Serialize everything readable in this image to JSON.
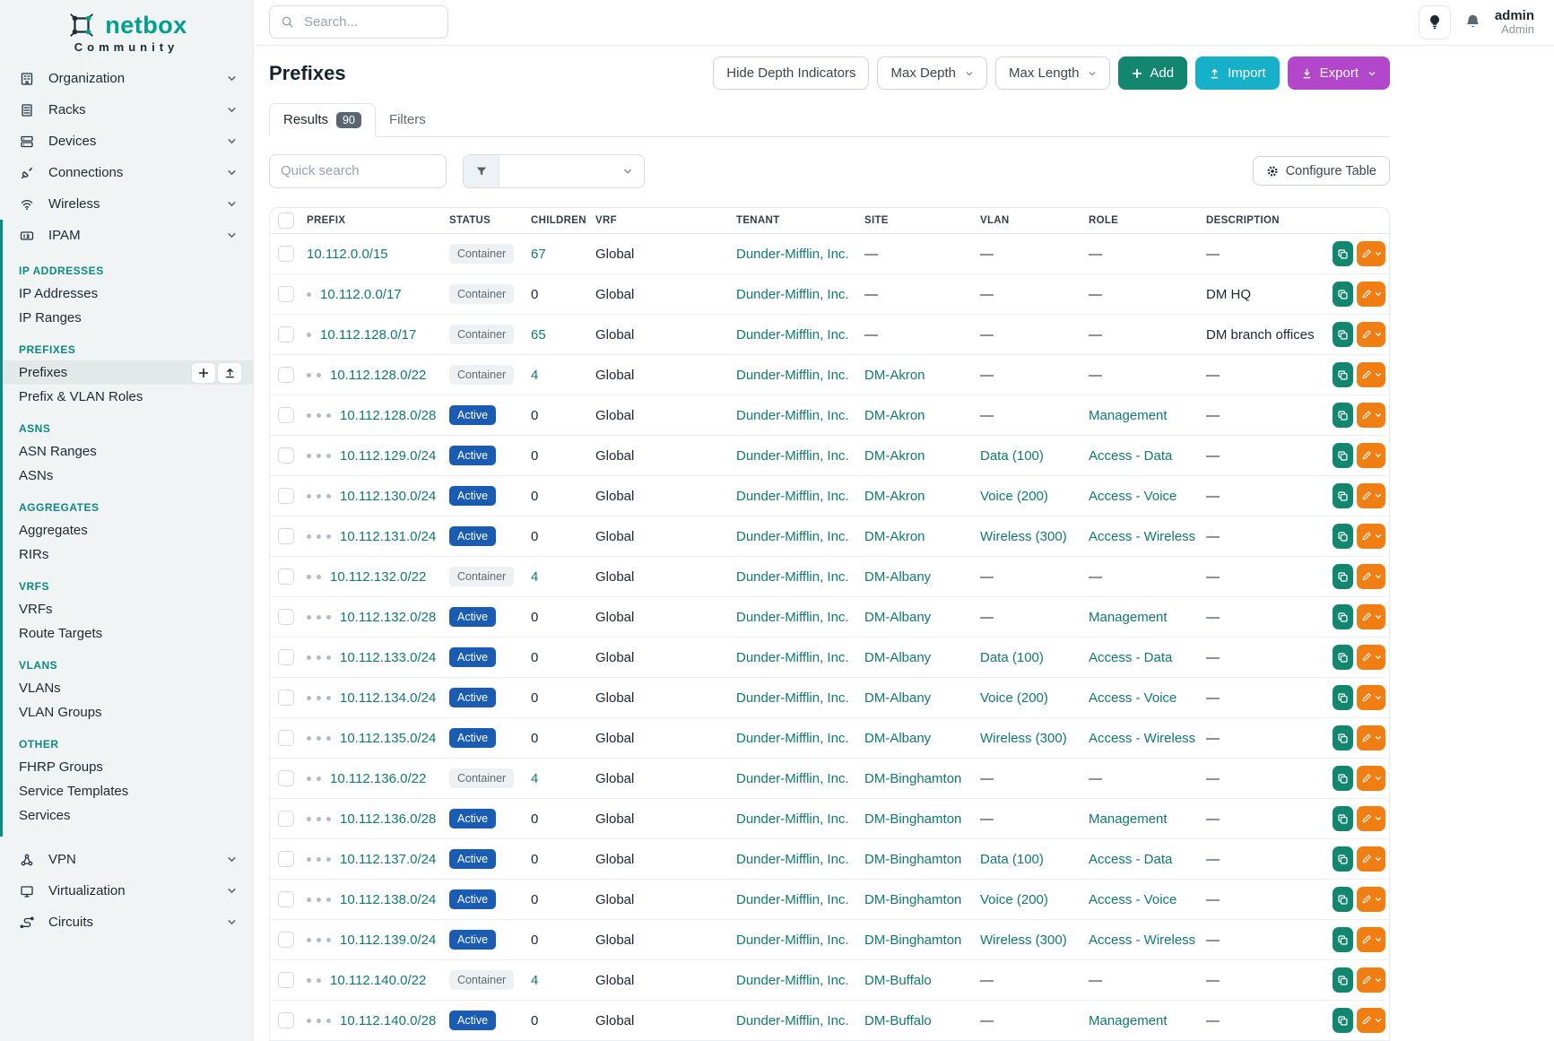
{
  "brand": {
    "name": "netbox",
    "subtitle": "Community"
  },
  "topbar": {
    "search_placeholder": "Search...",
    "icons": [
      "lightbulb-icon",
      "bell-icon"
    ],
    "user": {
      "name": "admin",
      "role": "Admin"
    }
  },
  "sidebar": {
    "top_items": [
      {
        "label": "Organization",
        "icon": "building-icon"
      },
      {
        "label": "Racks",
        "icon": "rack-icon"
      },
      {
        "label": "Devices",
        "icon": "server-icon"
      },
      {
        "label": "Connections",
        "icon": "plug-icon"
      },
      {
        "label": "Wireless",
        "icon": "wifi-icon"
      },
      {
        "label": "IPAM",
        "icon": "counter-icon",
        "expanded": true
      }
    ],
    "sections": [
      {
        "title": "IP ADDRESSES",
        "items": [
          {
            "label": "IP Addresses"
          },
          {
            "label": "IP Ranges"
          }
        ]
      },
      {
        "title": "PREFIXES",
        "items": [
          {
            "label": "Prefixes",
            "active": true,
            "actions": [
              "plus-icon",
              "upload-icon"
            ]
          },
          {
            "label": "Prefix & VLAN Roles"
          }
        ]
      },
      {
        "title": "ASNS",
        "items": [
          {
            "label": "ASN Ranges"
          },
          {
            "label": "ASNs"
          }
        ]
      },
      {
        "title": "AGGREGATES",
        "items": [
          {
            "label": "Aggregates"
          },
          {
            "label": "RIRs"
          }
        ]
      },
      {
        "title": "VRFS",
        "items": [
          {
            "label": "VRFs"
          },
          {
            "label": "Route Targets"
          }
        ]
      },
      {
        "title": "VLANS",
        "items": [
          {
            "label": "VLANs"
          },
          {
            "label": "VLAN Groups"
          }
        ]
      },
      {
        "title": "OTHER",
        "items": [
          {
            "label": "FHRP Groups"
          },
          {
            "label": "Service Templates"
          },
          {
            "label": "Services"
          }
        ]
      }
    ],
    "bottom_items": [
      {
        "label": "VPN",
        "icon": "network-icon"
      },
      {
        "label": "Virtualization",
        "icon": "monitor-icon"
      },
      {
        "label": "Circuits",
        "icon": "circuit-icon"
      }
    ]
  },
  "page": {
    "title": "Prefixes",
    "toolbar": {
      "hide_depth": "Hide Depth Indicators",
      "max_depth": "Max Depth",
      "max_length": "Max Length",
      "add": "Add",
      "import": "Import",
      "export": "Export"
    },
    "tabs": {
      "results": "Results",
      "results_count": "90",
      "filters": "Filters"
    },
    "quick_search_placeholder": "Quick search",
    "configure_table": "Configure Table"
  },
  "table": {
    "columns": [
      "PREFIX",
      "STATUS",
      "CHILDREN",
      "VRF",
      "TENANT",
      "SITE",
      "VLAN",
      "ROLE",
      "DESCRIPTION"
    ],
    "rows": [
      {
        "depth": 0,
        "prefix": "10.112.0.0/15",
        "status": "Container",
        "children": "67",
        "vrf": "Global",
        "tenant": "Dunder-Mifflin, Inc.",
        "site": "—",
        "vlan": "—",
        "role": "—",
        "description": "—"
      },
      {
        "depth": 1,
        "prefix": "10.112.0.0/17",
        "status": "Container",
        "children": "0",
        "vrf": "Global",
        "tenant": "Dunder-Mifflin, Inc.",
        "site": "—",
        "vlan": "—",
        "role": "—",
        "description": "DM HQ"
      },
      {
        "depth": 1,
        "prefix": "10.112.128.0/17",
        "status": "Container",
        "children": "65",
        "vrf": "Global",
        "tenant": "Dunder-Mifflin, Inc.",
        "site": "—",
        "vlan": "—",
        "role": "—",
        "description": "DM branch offices"
      },
      {
        "depth": 2,
        "prefix": "10.112.128.0/22",
        "status": "Container",
        "children": "4",
        "vrf": "Global",
        "tenant": "Dunder-Mifflin, Inc.",
        "site": "DM-Akron",
        "vlan": "—",
        "role": "—",
        "description": "—"
      },
      {
        "depth": 3,
        "prefix": "10.112.128.0/28",
        "status": "Active",
        "children": "0",
        "vrf": "Global",
        "tenant": "Dunder-Mifflin, Inc.",
        "site": "DM-Akron",
        "vlan": "—",
        "role": "Management",
        "description": "—"
      },
      {
        "depth": 3,
        "prefix": "10.112.129.0/24",
        "status": "Active",
        "children": "0",
        "vrf": "Global",
        "tenant": "Dunder-Mifflin, Inc.",
        "site": "DM-Akron",
        "vlan": "Data (100)",
        "role": "Access - Data",
        "description": "—"
      },
      {
        "depth": 3,
        "prefix": "10.112.130.0/24",
        "status": "Active",
        "children": "0",
        "vrf": "Global",
        "tenant": "Dunder-Mifflin, Inc.",
        "site": "DM-Akron",
        "vlan": "Voice (200)",
        "role": "Access - Voice",
        "description": "—"
      },
      {
        "depth": 3,
        "prefix": "10.112.131.0/24",
        "status": "Active",
        "children": "0",
        "vrf": "Global",
        "tenant": "Dunder-Mifflin, Inc.",
        "site": "DM-Akron",
        "vlan": "Wireless (300)",
        "role": "Access - Wireless",
        "description": "—"
      },
      {
        "depth": 2,
        "prefix": "10.112.132.0/22",
        "status": "Container",
        "children": "4",
        "vrf": "Global",
        "tenant": "Dunder-Mifflin, Inc.",
        "site": "DM-Albany",
        "vlan": "—",
        "role": "—",
        "description": "—"
      },
      {
        "depth": 3,
        "prefix": "10.112.132.0/28",
        "status": "Active",
        "children": "0",
        "vrf": "Global",
        "tenant": "Dunder-Mifflin, Inc.",
        "site": "DM-Albany",
        "vlan": "—",
        "role": "Management",
        "description": "—"
      },
      {
        "depth": 3,
        "prefix": "10.112.133.0/24",
        "status": "Active",
        "children": "0",
        "vrf": "Global",
        "tenant": "Dunder-Mifflin, Inc.",
        "site": "DM-Albany",
        "vlan": "Data (100)",
        "role": "Access - Data",
        "description": "—"
      },
      {
        "depth": 3,
        "prefix": "10.112.134.0/24",
        "status": "Active",
        "children": "0",
        "vrf": "Global",
        "tenant": "Dunder-Mifflin, Inc.",
        "site": "DM-Albany",
        "vlan": "Voice (200)",
        "role": "Access - Voice",
        "description": "—"
      },
      {
        "depth": 3,
        "prefix": "10.112.135.0/24",
        "status": "Active",
        "children": "0",
        "vrf": "Global",
        "tenant": "Dunder-Mifflin, Inc.",
        "site": "DM-Albany",
        "vlan": "Wireless (300)",
        "role": "Access - Wireless",
        "description": "—"
      },
      {
        "depth": 2,
        "prefix": "10.112.136.0/22",
        "status": "Container",
        "children": "4",
        "vrf": "Global",
        "tenant": "Dunder-Mifflin, Inc.",
        "site": "DM-Binghamton",
        "vlan": "—",
        "role": "—",
        "description": "—"
      },
      {
        "depth": 3,
        "prefix": "10.112.136.0/28",
        "status": "Active",
        "children": "0",
        "vrf": "Global",
        "tenant": "Dunder-Mifflin, Inc.",
        "site": "DM-Binghamton",
        "vlan": "—",
        "role": "Management",
        "description": "—"
      },
      {
        "depth": 3,
        "prefix": "10.112.137.0/24",
        "status": "Active",
        "children": "0",
        "vrf": "Global",
        "tenant": "Dunder-Mifflin, Inc.",
        "site": "DM-Binghamton",
        "vlan": "Data (100)",
        "role": "Access - Data",
        "description": "—"
      },
      {
        "depth": 3,
        "prefix": "10.112.138.0/24",
        "status": "Active",
        "children": "0",
        "vrf": "Global",
        "tenant": "Dunder-Mifflin, Inc.",
        "site": "DM-Binghamton",
        "vlan": "Voice (200)",
        "role": "Access - Voice",
        "description": "—"
      },
      {
        "depth": 3,
        "prefix": "10.112.139.0/24",
        "status": "Active",
        "children": "0",
        "vrf": "Global",
        "tenant": "Dunder-Mifflin, Inc.",
        "site": "DM-Binghamton",
        "vlan": "Wireless (300)",
        "role": "Access - Wireless",
        "description": "—"
      },
      {
        "depth": 2,
        "prefix": "10.112.140.0/22",
        "status": "Container",
        "children": "4",
        "vrf": "Global",
        "tenant": "Dunder-Mifflin, Inc.",
        "site": "DM-Buffalo",
        "vlan": "—",
        "role": "—",
        "description": "—"
      },
      {
        "depth": 3,
        "prefix": "10.112.140.0/28",
        "status": "Active",
        "children": "0",
        "vrf": "Global",
        "tenant": "Dunder-Mifflin, Inc.",
        "site": "DM-Buffalo",
        "vlan": "—",
        "role": "Management",
        "description": "—"
      }
    ]
  },
  "colors": {
    "brand-teal": "#00a18c",
    "link-teal": "#0e7a70",
    "section-teal": "#0e8a80",
    "status-active": "#1a5cb4",
    "add-green": "#12866f",
    "import-cyan": "#17b0c9",
    "export-purple": "#b347cc",
    "edit-orange": "#f07e12"
  }
}
